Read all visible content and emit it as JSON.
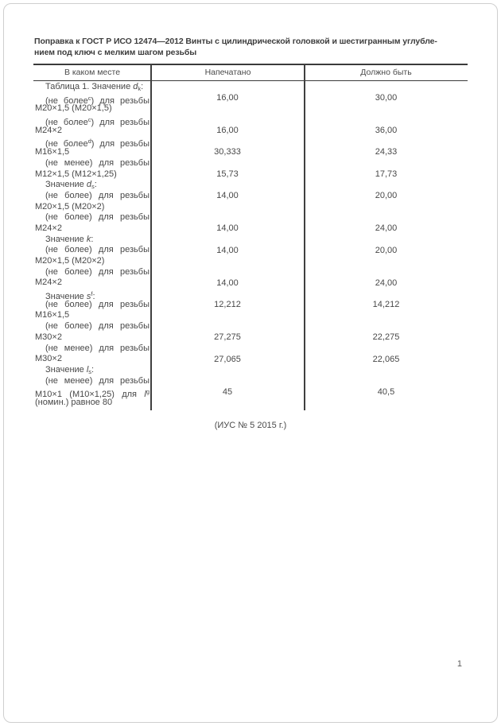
{
  "title_lines": [
    "Поправка к ГОСТ Р ИСО 12474—2012 Винты с цилиндрической головкой и шестигранным углубле-",
    "нием под ключ с мелким шагом резьбы"
  ],
  "table": {
    "headers": [
      "В каком месте",
      "Напечатано",
      "Должно быть"
    ],
    "lines": [
      {
        "indent": true,
        "segments": [
          {
            "t": "Таблица 1. Значение "
          },
          {
            "t": "d",
            "i": true
          },
          {
            "t": "k",
            "sub": true
          },
          {
            "t": ":"
          }
        ]
      },
      {
        "indent": true,
        "j": true,
        "segments": [
          {
            "t": "(не более"
          },
          {
            "t": "c",
            "sup": true
          },
          {
            "t": ") для резьбы"
          }
        ]
      },
      {
        "indent": false,
        "segments": [
          {
            "t": "М20×1,5 (М20×1,5)"
          }
        ]
      },
      {
        "indent": true,
        "j": true,
        "segments": [
          {
            "t": "(не более"
          },
          {
            "t": "c",
            "sup": true
          },
          {
            "t": ") для резьбы"
          }
        ]
      },
      {
        "indent": false,
        "segments": [
          {
            "t": "М24×2"
          }
        ]
      },
      {
        "indent": true,
        "j": true,
        "segments": [
          {
            "t": "(не более"
          },
          {
            "t": "d",
            "sup": true
          },
          {
            "t": ") для резьбы"
          }
        ]
      },
      {
        "indent": false,
        "segments": [
          {
            "t": "М16×1,5"
          }
        ]
      },
      {
        "indent": true,
        "j": true,
        "segments": [
          {
            "t": "(не менее) для резьбы"
          }
        ]
      },
      {
        "indent": false,
        "segments": [
          {
            "t": "М12×1,5 (М12×1,25)"
          }
        ]
      },
      {
        "indent": true,
        "segments": [
          {
            "t": "Значение "
          },
          {
            "t": "d",
            "i": true
          },
          {
            "t": "s",
            "sub": true
          },
          {
            "t": ":"
          }
        ]
      },
      {
        "indent": true,
        "j": true,
        "segments": [
          {
            "t": "(не более) для резьбы"
          }
        ]
      },
      {
        "indent": false,
        "segments": [
          {
            "t": "М20×1,5 (М20×2)"
          }
        ]
      },
      {
        "indent": true,
        "j": true,
        "segments": [
          {
            "t": "(не более) для резьбы"
          }
        ]
      },
      {
        "indent": false,
        "segments": [
          {
            "t": "М24×2"
          }
        ]
      },
      {
        "indent": true,
        "segments": [
          {
            "t": "Значение "
          },
          {
            "t": "k",
            "i": true
          },
          {
            "t": ":"
          }
        ]
      },
      {
        "indent": true,
        "j": true,
        "segments": [
          {
            "t": "(не более) для резьбы"
          }
        ]
      },
      {
        "indent": false,
        "segments": [
          {
            "t": "М20×1,5 (М20×2)"
          }
        ]
      },
      {
        "indent": true,
        "j": true,
        "segments": [
          {
            "t": "(не более) для резьбы"
          }
        ]
      },
      {
        "indent": false,
        "segments": [
          {
            "t": "М24×2"
          }
        ]
      },
      {
        "indent": true,
        "segments": [
          {
            "t": "Значение "
          },
          {
            "t": "s",
            "i": true
          },
          {
            "t": "f",
            "sup": true
          },
          {
            "t": ":"
          }
        ]
      },
      {
        "indent": true,
        "j": true,
        "segments": [
          {
            "t": "(не более) для резьбы"
          }
        ]
      },
      {
        "indent": false,
        "segments": [
          {
            "t": "М16×1,5"
          }
        ]
      },
      {
        "indent": true,
        "j": true,
        "segments": [
          {
            "t": "(не более) для резьбы"
          }
        ]
      },
      {
        "indent": false,
        "segments": [
          {
            "t": "М30×2"
          }
        ]
      },
      {
        "indent": true,
        "j": true,
        "segments": [
          {
            "t": "(не менее) для резьбы"
          }
        ]
      },
      {
        "indent": false,
        "segments": [
          {
            "t": "М30×2"
          }
        ]
      },
      {
        "indent": true,
        "segments": [
          {
            "t": "Значение "
          },
          {
            "t": "l",
            "i": true
          },
          {
            "t": "s",
            "sub": true
          },
          {
            "t": ":"
          }
        ]
      },
      {
        "indent": true,
        "j": true,
        "segments": [
          {
            "t": "(не менее) для резьбы"
          }
        ]
      },
      {
        "indent": false,
        "j": true,
        "segments": [
          {
            "t": "М10×1 (М10×1,25) для "
          },
          {
            "t": "l",
            "i": true
          },
          {
            "t": "g",
            "sup": true
          }
        ]
      },
      {
        "indent": false,
        "segments": [
          {
            "t": "(номин.) равное 80"
          }
        ]
      }
    ],
    "values": [
      {
        "line": 1,
        "printed": "16,00",
        "correct": "30,00"
      },
      {
        "line": 4,
        "printed": "16,00",
        "correct": "36,00"
      },
      {
        "line": 6,
        "printed": "30,333",
        "correct": "24,33"
      },
      {
        "line": 8,
        "printed": "15,73",
        "correct": "17,73"
      },
      {
        "line": 10,
        "printed": "14,00",
        "correct": "20,00"
      },
      {
        "line": 13,
        "printed": "14,00",
        "correct": "24,00"
      },
      {
        "line": 15,
        "printed": "14,00",
        "correct": "20,00"
      },
      {
        "line": 18,
        "printed": "14,00",
        "correct": "24,00"
      },
      {
        "line": 20,
        "printed": "12,212",
        "correct": "14,212"
      },
      {
        "line": 23,
        "printed": "27,275",
        "correct": "22,275"
      },
      {
        "line": 25,
        "printed": "27,065",
        "correct": "22,065"
      },
      {
        "line": 28,
        "printed": "45",
        "correct": "40,5"
      }
    ]
  },
  "footer_note": "(ИУС № 5  2015 г.)",
  "page_number": "1",
  "colors": {
    "text": "#484848",
    "border": "#3a3a3a",
    "page_frame": "#cfcfcf"
  }
}
